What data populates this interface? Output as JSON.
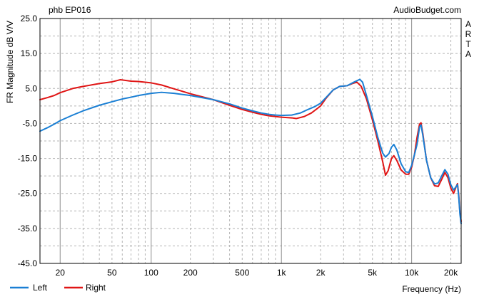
{
  "chart_data": {
    "type": "line",
    "title": "phb EP016",
    "watermark": "AudioBudget.com",
    "side_label": [
      "A",
      "R",
      "T",
      "A"
    ],
    "xlabel": "Frequency (Hz)",
    "ylabel": "FR Magnitude dB V/V",
    "x_scale": "log",
    "xlim": [
      14,
      24000
    ],
    "ylim": [
      -45,
      25
    ],
    "x_ticks": [
      {
        "value": 20,
        "label": "20"
      },
      {
        "value": 50,
        "label": "50"
      },
      {
        "value": 100,
        "label": "100"
      },
      {
        "value": 200,
        "label": "200"
      },
      {
        "value": 500,
        "label": "500"
      },
      {
        "value": 1000,
        "label": "1k"
      },
      {
        "value": 2000,
        "label": "2k"
      },
      {
        "value": 5000,
        "label": "5k"
      },
      {
        "value": 10000,
        "label": "10k"
      },
      {
        "value": 20000,
        "label": "20k"
      }
    ],
    "y_ticks": [
      {
        "value": 25,
        "label": "25.0"
      },
      {
        "value": 15,
        "label": "15.0"
      },
      {
        "value": 5,
        "label": "5.0"
      },
      {
        "value": -5,
        "label": "-5.0"
      },
      {
        "value": -15,
        "label": "-15.0"
      },
      {
        "value": -25,
        "label": "-25.0"
      },
      {
        "value": -35,
        "label": "-35.0"
      },
      {
        "value": -45,
        "label": "-45.0"
      }
    ],
    "grid": true,
    "legend_position": "bottom-left",
    "series": [
      {
        "name": "Left",
        "color": "#1a7fd4",
        "points": [
          [
            14,
            -7.2
          ],
          [
            16,
            -6.2
          ],
          [
            18,
            -5.2
          ],
          [
            20,
            -4.2
          ],
          [
            25,
            -2.6
          ],
          [
            30,
            -1.4
          ],
          [
            40,
            0.2
          ],
          [
            50,
            1.2
          ],
          [
            60,
            2.0
          ],
          [
            70,
            2.5
          ],
          [
            80,
            3.0
          ],
          [
            100,
            3.6
          ],
          [
            120,
            3.9
          ],
          [
            150,
            3.6
          ],
          [
            200,
            3.0
          ],
          [
            300,
            1.8
          ],
          [
            400,
            0.6
          ],
          [
            500,
            -0.6
          ],
          [
            600,
            -1.4
          ],
          [
            700,
            -2.0
          ],
          [
            800,
            -2.4
          ],
          [
            900,
            -2.6
          ],
          [
            1000,
            -2.7
          ],
          [
            1200,
            -2.6
          ],
          [
            1400,
            -2.0
          ],
          [
            1600,
            -1.0
          ],
          [
            1800,
            -0.2
          ],
          [
            2000,
            0.8
          ],
          [
            2200,
            2.4
          ],
          [
            2500,
            4.6
          ],
          [
            2800,
            5.6
          ],
          [
            3200,
            5.8
          ],
          [
            3600,
            6.8
          ],
          [
            4000,
            7.6
          ],
          [
            4200,
            6.8
          ],
          [
            4500,
            3.0
          ],
          [
            5000,
            -3.0
          ],
          [
            5500,
            -9.0
          ],
          [
            6000,
            -13.5
          ],
          [
            6300,
            -14.6
          ],
          [
            6700,
            -13.6
          ],
          [
            7000,
            -11.8
          ],
          [
            7300,
            -11.0
          ],
          [
            7700,
            -12.6
          ],
          [
            8300,
            -16.5
          ],
          [
            9000,
            -18.8
          ],
          [
            9500,
            -19.0
          ],
          [
            10000,
            -17.0
          ],
          [
            10500,
            -14.0
          ],
          [
            11000,
            -11.0
          ],
          [
            11500,
            -6.0
          ],
          [
            11800,
            -5.4
          ],
          [
            12200,
            -8.5
          ],
          [
            13000,
            -15.5
          ],
          [
            14000,
            -20.5
          ],
          [
            15000,
            -22.3
          ],
          [
            16000,
            -22.0
          ],
          [
            17000,
            -20.0
          ],
          [
            18000,
            -18.2
          ],
          [
            19000,
            -19.5
          ],
          [
            20000,
            -22.5
          ],
          [
            21000,
            -24.0
          ],
          [
            22000,
            -23.0
          ],
          [
            22500,
            -22.5
          ],
          [
            23000,
            -26.0
          ],
          [
            23500,
            -31.0
          ],
          [
            24000,
            -33.6
          ]
        ]
      },
      {
        "name": "Right",
        "color": "#e01515",
        "points": [
          [
            14,
            1.8
          ],
          [
            16,
            2.4
          ],
          [
            18,
            3.0
          ],
          [
            20,
            3.8
          ],
          [
            25,
            5.0
          ],
          [
            30,
            5.6
          ],
          [
            40,
            6.4
          ],
          [
            50,
            6.9
          ],
          [
            58,
            7.5
          ],
          [
            70,
            7.1
          ],
          [
            80,
            7.0
          ],
          [
            100,
            6.6
          ],
          [
            120,
            6.0
          ],
          [
            150,
            4.9
          ],
          [
            200,
            3.5
          ],
          [
            300,
            1.8
          ],
          [
            400,
            0.2
          ],
          [
            500,
            -1.0
          ],
          [
            600,
            -1.8
          ],
          [
            700,
            -2.4
          ],
          [
            800,
            -2.8
          ],
          [
            1000,
            -3.2
          ],
          [
            1200,
            -3.4
          ],
          [
            1300,
            -3.6
          ],
          [
            1500,
            -3.0
          ],
          [
            1700,
            -2.0
          ],
          [
            2000,
            0.0
          ],
          [
            2200,
            2.2
          ],
          [
            2500,
            4.6
          ],
          [
            2800,
            5.6
          ],
          [
            3200,
            5.8
          ],
          [
            3500,
            6.4
          ],
          [
            3800,
            6.8
          ],
          [
            4100,
            5.6
          ],
          [
            4500,
            2.0
          ],
          [
            5000,
            -4.0
          ],
          [
            5500,
            -10.0
          ],
          [
            6000,
            -16.0
          ],
          [
            6300,
            -19.8
          ],
          [
            6600,
            -18.5
          ],
          [
            7000,
            -15.0
          ],
          [
            7300,
            -14.2
          ],
          [
            7700,
            -15.6
          ],
          [
            8300,
            -18.3
          ],
          [
            9000,
            -19.5
          ],
          [
            9500,
            -19.5
          ],
          [
            10000,
            -17.5
          ],
          [
            10500,
            -14.0
          ],
          [
            11000,
            -9.0
          ],
          [
            11500,
            -5.2
          ],
          [
            11800,
            -4.8
          ],
          [
            12200,
            -8.0
          ],
          [
            13000,
            -15.5
          ],
          [
            14000,
            -20.5
          ],
          [
            15000,
            -22.8
          ],
          [
            16000,
            -23.0
          ],
          [
            17000,
            -21.0
          ],
          [
            18000,
            -19.0
          ],
          [
            19000,
            -20.5
          ],
          [
            20000,
            -23.5
          ],
          [
            21000,
            -25.0
          ],
          [
            22000,
            -23.0
          ],
          [
            22500,
            -22.2
          ],
          [
            23000,
            -25.5
          ],
          [
            23500,
            -30.5
          ],
          [
            24000,
            -33.0
          ]
        ]
      }
    ]
  }
}
